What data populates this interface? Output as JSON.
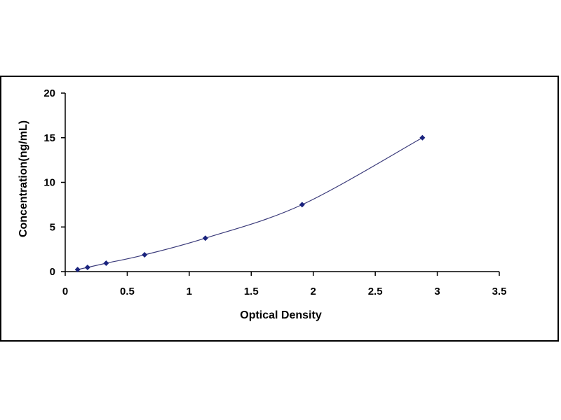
{
  "chart_data": {
    "type": "scatter",
    "title": "",
    "xlabel": "Optical Density",
    "ylabel": "Concentration(ng/mL)",
    "xlim": [
      0,
      3.5
    ],
    "ylim": [
      0,
      20
    ],
    "x_ticks": [
      0,
      0.5,
      1,
      1.5,
      2,
      2.5,
      3,
      3.5
    ],
    "x_tick_labels": [
      "0",
      "0.5",
      "1",
      "1.5",
      "2",
      "2.5",
      "3",
      "3.5"
    ],
    "y_ticks": [
      0,
      5,
      10,
      15,
      20
    ],
    "y_tick_labels": [
      "0",
      "5",
      "10",
      "15",
      "20"
    ],
    "grid": false,
    "legend": "none",
    "series": [
      {
        "x": [
          0.1,
          0.18,
          0.33,
          0.64,
          1.13,
          1.91,
          2.88
        ],
        "y": [
          0.23,
          0.47,
          0.94,
          1.88,
          3.75,
          7.5,
          15
        ],
        "fit_curve": true,
        "color": "#1a237e"
      }
    ]
  }
}
